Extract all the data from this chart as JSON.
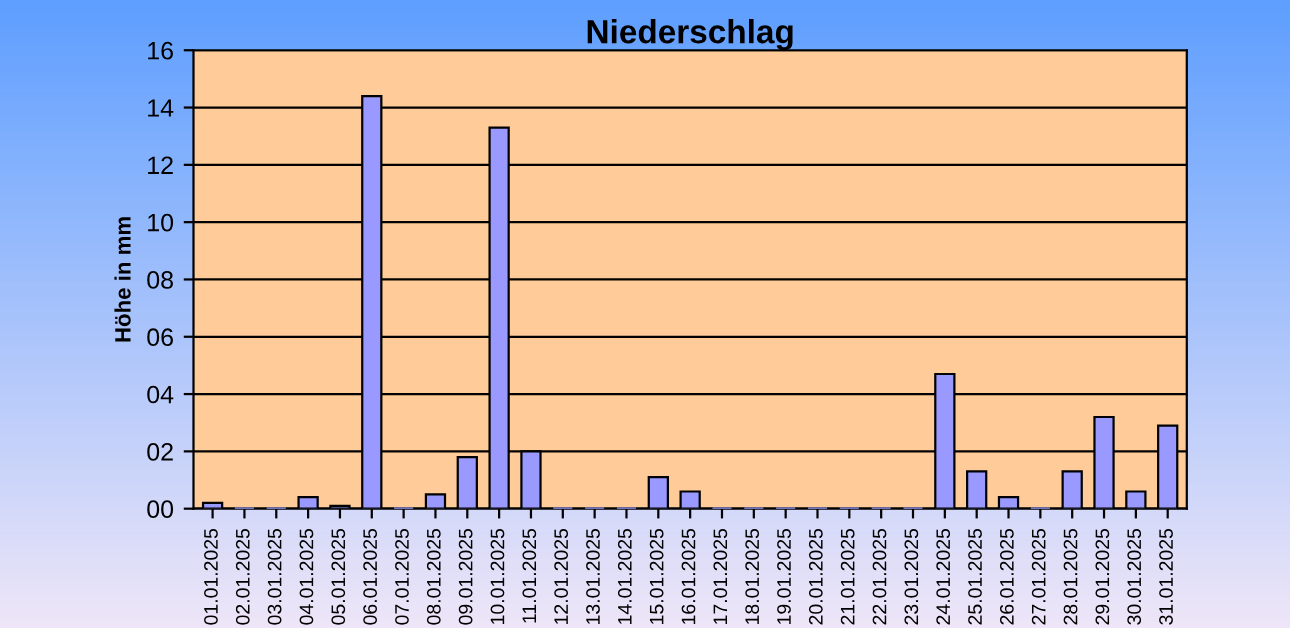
{
  "chart_data": {
    "type": "bar",
    "title": "Niederschlag",
    "ylabel": "Höhe in mm",
    "categories": [
      "01.01.2025",
      "02.01.2025",
      "03.01.2025",
      "04.01.2025",
      "05.01.2025",
      "06.01.2025",
      "07.01.2025",
      "08.01.2025",
      "09.01.2025",
      "10.01.2025",
      "11.01.2025",
      "12.01.2025",
      "13.01.2025",
      "14.01.2025",
      "15.01.2025",
      "16.01.2025",
      "17.01.2025",
      "18.01.2025",
      "19.01.2025",
      "20.01.2025",
      "21.01.2025",
      "22.01.2025",
      "23.01.2025",
      "24.01.2025",
      "25.01.2025",
      "26.01.2025",
      "27.01.2025",
      "28.01.2025",
      "29.01.2025",
      "30.01.2025",
      "31.01.2025"
    ],
    "values": [
      0.2,
      0,
      0,
      0.4,
      0.1,
      14.4,
      0,
      0.5,
      1.8,
      13.3,
      2.0,
      0,
      0,
      0,
      1.1,
      0.6,
      0,
      0,
      0,
      0,
      0,
      0,
      0,
      4.7,
      1.3,
      0.4,
      0,
      1.3,
      3.2,
      0.6,
      2.9
    ],
    "color": "#9999ff",
    "ylim": [
      0,
      16
    ],
    "yticks": [
      {
        "value": 0,
        "label": "00"
      },
      {
        "value": 2,
        "label": "02"
      },
      {
        "value": 4,
        "label": "04"
      },
      {
        "value": 6,
        "label": "06"
      },
      {
        "value": 8,
        "label": "08"
      },
      {
        "value": 10,
        "label": "10"
      },
      {
        "value": 12,
        "label": "12"
      },
      {
        "value": 14,
        "label": "14"
      },
      {
        "value": 16,
        "label": "16"
      }
    ],
    "grid": "y",
    "legend": false
  }
}
